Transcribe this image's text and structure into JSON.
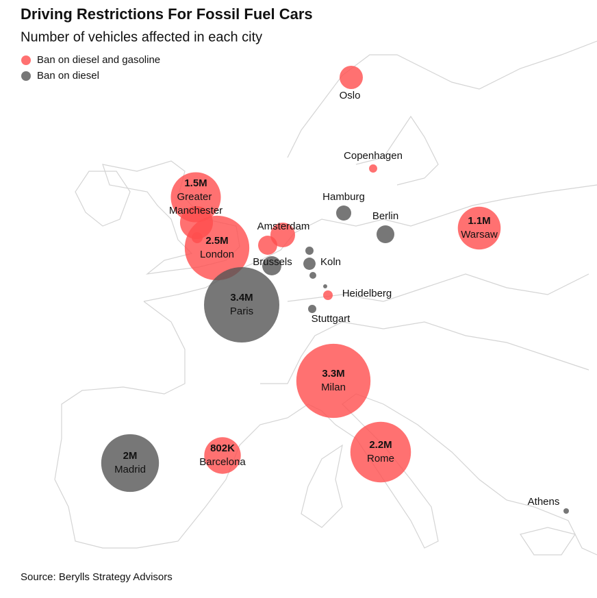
{
  "title": "Driving Restrictions For Fossil Fuel Cars",
  "subtitle": "Number of vehicles affected in each city",
  "legend": [
    {
      "name": "Ban on diesel and gasoline",
      "color": "#ff4d4d"
    },
    {
      "name": "Ban on diesel",
      "color": "#555555"
    }
  ],
  "source": "Source: Berylls Strategy Advisors",
  "cities": [
    {
      "name": "Oslo",
      "value": 325000,
      "category": 0
    },
    {
      "name": "Copenhagen",
      "value": 40000,
      "category": 0
    },
    {
      "name": "Hamburg",
      "value": 136000,
      "category": 1
    },
    {
      "name": "Berlin",
      "value": 190000,
      "category": 1
    },
    {
      "name": "Warsaw",
      "value": 1100000,
      "value_label": "1.1M",
      "category": 0
    },
    {
      "name": "Greater Manchester",
      "value": 1500000,
      "value_label": "1.5M",
      "category": 0
    },
    {
      "name": null,
      "value": 650000,
      "category": 0
    },
    {
      "name": null,
      "value": 72000,
      "category": 0
    },
    {
      "name": "London",
      "value": 2500000,
      "value_label": "2.5M",
      "category": 0
    },
    {
      "name": "Amsterdam",
      "value": 365000,
      "category": 0
    },
    {
      "name": null,
      "value": 220000,
      "category": 0
    },
    {
      "name": "Brussels",
      "value": 220000,
      "category": 1
    },
    {
      "name": "Koln",
      "value": 90000,
      "category": 1
    },
    {
      "name": null,
      "value": 40000,
      "category": 1
    },
    {
      "name": null,
      "value": 28000,
      "category": 1
    },
    {
      "name": null,
      "value": 10000,
      "category": 1
    },
    {
      "name": "Heidelberg",
      "value": 55000,
      "category": 0
    },
    {
      "name": "Stuttgart",
      "value": 40000,
      "category": 1
    },
    {
      "name": "Paris",
      "value": 3400000,
      "value_label": "3.4M",
      "category": 1
    },
    {
      "name": "Milan",
      "value": 3300000,
      "value_label": "3.3M",
      "category": 0
    },
    {
      "name": "Rome",
      "value": 2200000,
      "value_label": "2.2M",
      "category": 0
    },
    {
      "name": "Madrid",
      "value": 2000000,
      "value_label": "2M",
      "category": 1
    },
    {
      "name": "Barcelona",
      "value": 802000,
      "value_label": "802K",
      "category": 0
    },
    {
      "name": "Athens",
      "value": 18000,
      "category": 1
    }
  ]
}
